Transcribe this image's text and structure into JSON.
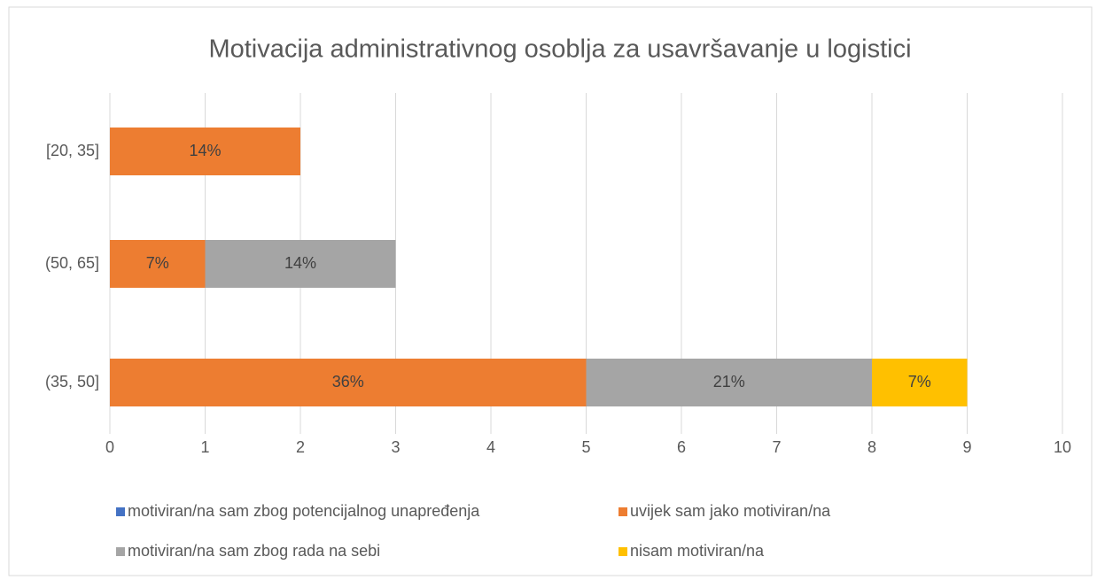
{
  "chart_data": {
    "type": "stacked-bar-horizontal",
    "title": "Motivacija administrativnog osoblja za usavršavanje u logistici",
    "categories": [
      "[20, 35]",
      "(50, 65]",
      "(35, 50]"
    ],
    "series": [
      {
        "name": "motiviran/na sam zbog potencijalnog unapređenja",
        "color": "#4472c4",
        "values": [
          0,
          0,
          0
        ],
        "value_labels": [
          null,
          null,
          null
        ]
      },
      {
        "name": "uvijek sam jako motiviran/na",
        "color": "#ed7d31",
        "values": [
          2,
          1,
          5
        ],
        "value_labels": [
          "14%",
          "7%",
          "36%"
        ]
      },
      {
        "name": "motiviran/na sam zbog rada na sebi",
        "color": "#a5a5a5",
        "values": [
          0,
          2,
          3
        ],
        "value_labels": [
          null,
          "14%",
          "21%"
        ]
      },
      {
        "name": "nisam motiviran/na",
        "color": "#ffc000",
        "values": [
          0,
          0,
          1
        ],
        "value_labels": [
          null,
          null,
          "7%"
        ]
      }
    ],
    "xlim": [
      0,
      10
    ],
    "xticks": [
      0,
      1,
      2,
      3,
      4,
      5,
      6,
      7,
      8,
      9,
      10
    ],
    "grid": true
  }
}
